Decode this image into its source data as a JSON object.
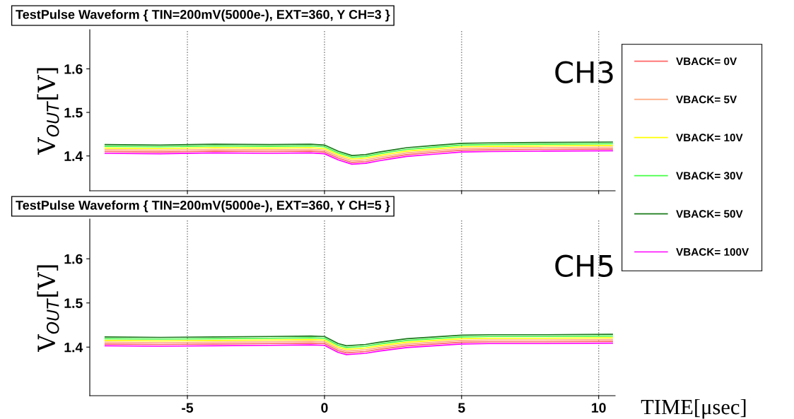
{
  "chart_data": [
    {
      "type": "line",
      "title": "TestPulse Waveform { TIN=200mV(5000e-), EXT=360, Y CH=3 }",
      "ylabel": "V$_{OUT}$[V]",
      "annotations": [
        "CH3"
      ],
      "x": [
        -8,
        -6,
        -4,
        -2,
        -0.5,
        0,
        0.5,
        1,
        1.5,
        2,
        2.5,
        3,
        4,
        5,
        6,
        8,
        10.5
      ],
      "xlim": [
        -8.56,
        10.6
      ],
      "xticks": [
        -5,
        0,
        5,
        10
      ],
      "ylim": [
        1.32,
        1.69
      ],
      "yticks": [
        1.4,
        1.5,
        1.6
      ],
      "tick_labels": "y",
      "grid": "x",
      "legend": "right",
      "line_style": "solid",
      "marker": "none",
      "series": [
        {
          "name": "VBACK= 0V",
          "color": "#ff6666",
          "values": [
            1.41,
            1.409,
            1.411,
            1.41,
            1.411,
            1.409,
            1.395,
            1.385,
            1.387,
            1.393,
            1.398,
            1.403,
            1.408,
            1.413,
            1.414,
            1.415,
            1.416
          ]
        },
        {
          "name": "VBACK= 5V",
          "color": "#ffaa80",
          "values": [
            1.414,
            1.413,
            1.415,
            1.414,
            1.415,
            1.413,
            1.399,
            1.389,
            1.391,
            1.397,
            1.402,
            1.407,
            1.412,
            1.417,
            1.418,
            1.419,
            1.42
          ]
        },
        {
          "name": "VBACK= 10V",
          "color": "#ffff00",
          "values": [
            1.418,
            1.417,
            1.419,
            1.418,
            1.419,
            1.417,
            1.403,
            1.393,
            1.395,
            1.401,
            1.406,
            1.411,
            1.416,
            1.421,
            1.422,
            1.423,
            1.424
          ]
        },
        {
          "name": "VBACK= 30V",
          "color": "#44ff44",
          "values": [
            1.422,
            1.421,
            1.423,
            1.422,
            1.423,
            1.421,
            1.407,
            1.397,
            1.399,
            1.405,
            1.41,
            1.415,
            1.42,
            1.425,
            1.426,
            1.427,
            1.428
          ]
        },
        {
          "name": "VBACK= 50V",
          "color": "#1a7a1a",
          "values": [
            1.426,
            1.425,
            1.427,
            1.426,
            1.427,
            1.425,
            1.411,
            1.401,
            1.403,
            1.409,
            1.414,
            1.419,
            1.424,
            1.429,
            1.43,
            1.431,
            1.432
          ]
        },
        {
          "name": "VBACK= 100V",
          "color": "#ff00ff",
          "values": [
            1.406,
            1.405,
            1.407,
            1.406,
            1.407,
            1.405,
            1.391,
            1.381,
            1.383,
            1.389,
            1.394,
            1.399,
            1.404,
            1.409,
            1.41,
            1.411,
            1.412
          ]
        }
      ]
    },
    {
      "type": "line",
      "title": "TestPulse Waveform { TIN=200mV(5000e-), EXT=360, Y CH=5 }",
      "ylabel": "V$_{OUT}$[V]",
      "xlabel": "TIME[μsec]",
      "annotations": [
        "CH5"
      ],
      "x": [
        -8,
        -6,
        -4,
        -2,
        -0.5,
        0,
        0.5,
        0.8,
        1.5,
        2,
        2.5,
        3,
        4,
        5,
        6,
        8,
        10.5
      ],
      "xlim": [
        -8.56,
        10.6
      ],
      "xticks": [
        -5,
        0,
        5,
        10
      ],
      "ylim": [
        1.29,
        1.69
      ],
      "yticks": [
        1.4,
        1.5,
        1.6
      ],
      "grid": "x",
      "line_style": "solid",
      "marker": "none",
      "series": [
        {
          "color": "#ff6666",
          "values": [
            1.407,
            1.406,
            1.407,
            1.408,
            1.409,
            1.408,
            1.392,
            1.387,
            1.39,
            1.395,
            1.399,
            1.403,
            1.407,
            1.411,
            1.412,
            1.412,
            1.413
          ]
        },
        {
          "color": "#ffaa80",
          "values": [
            1.411,
            1.41,
            1.411,
            1.412,
            1.413,
            1.412,
            1.396,
            1.391,
            1.394,
            1.399,
            1.403,
            1.407,
            1.411,
            1.415,
            1.416,
            1.416,
            1.417
          ]
        },
        {
          "color": "#ffff00",
          "values": [
            1.415,
            1.414,
            1.415,
            1.416,
            1.417,
            1.416,
            1.4,
            1.395,
            1.398,
            1.403,
            1.407,
            1.411,
            1.415,
            1.419,
            1.42,
            1.42,
            1.421
          ]
        },
        {
          "color": "#44ff44",
          "values": [
            1.419,
            1.418,
            1.419,
            1.42,
            1.421,
            1.42,
            1.404,
            1.399,
            1.402,
            1.407,
            1.411,
            1.415,
            1.419,
            1.423,
            1.424,
            1.424,
            1.425
          ]
        },
        {
          "color": "#1a7a1a",
          "values": [
            1.423,
            1.422,
            1.423,
            1.424,
            1.425,
            1.424,
            1.408,
            1.403,
            1.406,
            1.411,
            1.415,
            1.419,
            1.423,
            1.427,
            1.428,
            1.428,
            1.429
          ]
        },
        {
          "color": "#ff00ff",
          "values": [
            1.403,
            1.402,
            1.403,
            1.404,
            1.405,
            1.404,
            1.388,
            1.383,
            1.386,
            1.391,
            1.395,
            1.399,
            1.403,
            1.407,
            1.408,
            1.408,
            1.409
          ]
        }
      ]
    }
  ]
}
